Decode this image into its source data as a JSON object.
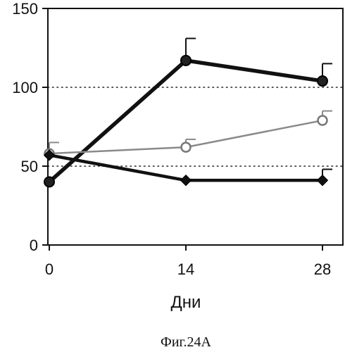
{
  "chart_data": {
    "type": "line",
    "title": "",
    "xlabel": "Дни",
    "ylabel": "",
    "caption": "Фиг.24А",
    "x": [
      0,
      14,
      28
    ],
    "x_ticks": [
      "0",
      "14",
      "28"
    ],
    "xlim": [
      0,
      28
    ],
    "y_ticks": [
      "0",
      "50",
      "100",
      "150"
    ],
    "ylim": [
      0,
      150
    ],
    "reference_lines": [
      50,
      100
    ],
    "grid": false,
    "series": [
      {
        "values": [
          40,
          117,
          104
        ],
        "error_up": [
          0,
          14,
          11
        ],
        "marker": "circle-filled",
        "color": "#111111"
      },
      {
        "values": [
          58,
          62,
          79
        ],
        "error_up": [
          7,
          5,
          6
        ],
        "marker": "circle-open",
        "color": "#8a8a8a"
      },
      {
        "values": [
          57,
          41,
          41
        ],
        "error_up": [
          0,
          0,
          7
        ],
        "marker": "diamond-filled",
        "color": "#111111"
      }
    ]
  }
}
